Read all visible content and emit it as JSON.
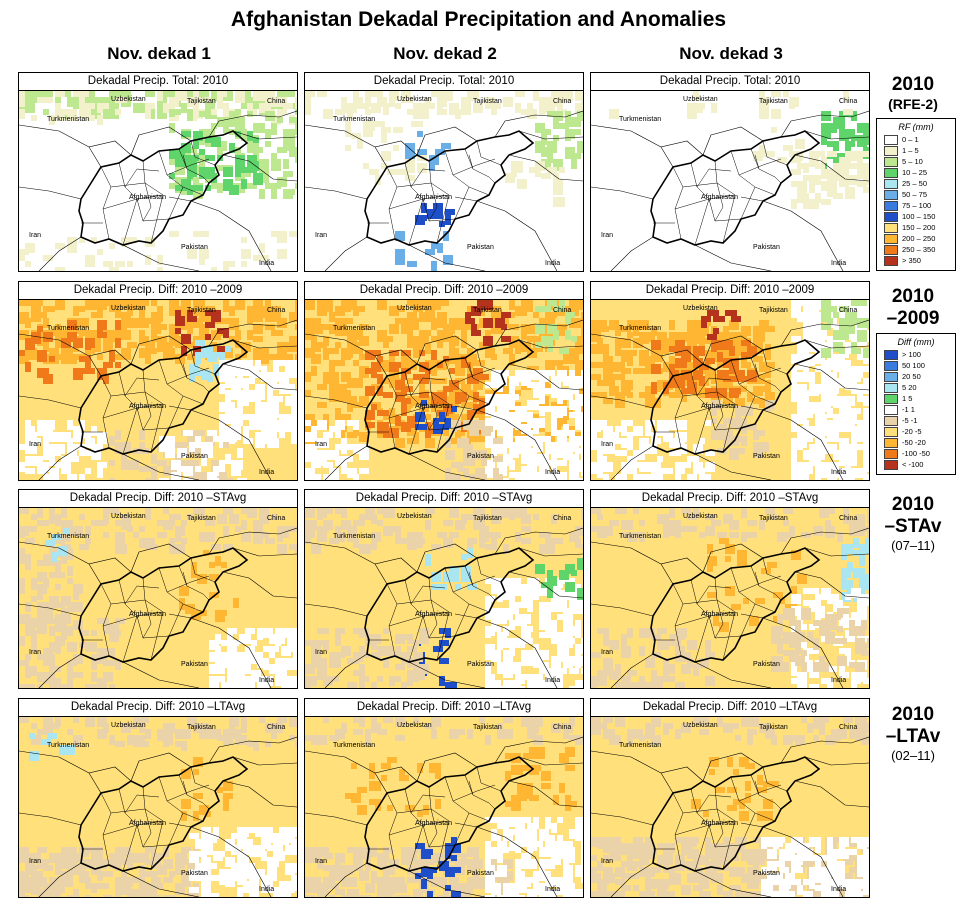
{
  "title": "Afghanistan Dekadal Precipitation and Anomalies",
  "columns": [
    "Nov. dekad 1",
    "Nov. dekad 2",
    "Nov. dekad 3"
  ],
  "rows": [
    {
      "label_line1": "2010",
      "label_line2": "(RFE-2)",
      "panel_titles": [
        "Dekadal Precip. Total: 2010",
        "Dekadal Precip. Total: 2010",
        "Dekadal Precip. Total: 2010"
      ]
    },
    {
      "label_line1": "2010",
      "label_line2": "–2009",
      "panel_titles": [
        "Dekadal Precip. Diff:  2010 –2009",
        "Dekadal Precip. Diff:  2010 –2009",
        "Dekadal Precip. Diff:  2010 –2009"
      ]
    },
    {
      "label_line1": "2010",
      "label_line2": "–STAv",
      "label_line3": "(07–11)",
      "panel_titles": [
        "Dekadal Precip. Diff:  2010 –STAvg",
        "Dekadal Precip. Diff:  2010 –STAvg",
        "Dekadal Precip. Diff:  2010 –STAvg"
      ]
    },
    {
      "label_line1": "2010",
      "label_line2": "–LTAv",
      "label_line3": "(02–11)",
      "panel_titles": [
        "Dekadal Precip. Diff:  2010 –LTAvg",
        "Dekadal Precip. Diff:  2010 –LTAvg",
        "Dekadal Precip. Diff:  2010 –LTAvg"
      ]
    }
  ],
  "place_labels": {
    "uzbekistan": "Uzbekistan",
    "tajikistan": "Tajikistan",
    "china": "China",
    "turkmenistan": "Turkmenistan",
    "afghanistan": "Afghanistan",
    "iran": "Iran",
    "pakistan": "Pakistan",
    "india": "India"
  },
  "legend_rf": {
    "title": "RF (mm)",
    "items": [
      {
        "label": "0 – 1",
        "color": "#ffffff"
      },
      {
        "label": "1 – 5",
        "color": "#f3f0cc"
      },
      {
        "label": "5 – 10",
        "color": "#bde88f"
      },
      {
        "label": "10 – 25",
        "color": "#5fd46a"
      },
      {
        "label": "25 – 50",
        "color": "#a9e6f2"
      },
      {
        "label": "50 – 75",
        "color": "#6aaee8"
      },
      {
        "label": "75 – 100",
        "color": "#3a7cdd"
      },
      {
        "label": "100 – 150",
        "color": "#1f4fc8"
      },
      {
        "label": "150 – 200",
        "color": "#ffe07a"
      },
      {
        "label": "200 – 250",
        "color": "#ffb733"
      },
      {
        "label": "250 – 350",
        "color": "#f07a1a"
      },
      {
        "label": "> 350",
        "color": "#b5331c"
      }
    ]
  },
  "legend_diff": {
    "title": "Diff (mm)",
    "items": [
      {
        "label": "> 100",
        "color": "#1f4fc8"
      },
      {
        "label": "50  100",
        "color": "#3a7cdd"
      },
      {
        "label": "20  50",
        "color": "#6aaee8"
      },
      {
        "label": "5  20",
        "color": "#a9e6f2"
      },
      {
        "label": "1  5",
        "color": "#5fd46a"
      },
      {
        "label": "-1  1",
        "color": "#ffffff"
      },
      {
        "label": "-5  -1",
        "color": "#ead3a8"
      },
      {
        "label": "-20  -5",
        "color": "#ffe07a"
      },
      {
        "label": "-50  -20",
        "color": "#ffb733"
      },
      {
        "label": "-100  -50",
        "color": "#f07a1a"
      },
      {
        "label": "< -100",
        "color": "#b5331c"
      }
    ]
  }
}
